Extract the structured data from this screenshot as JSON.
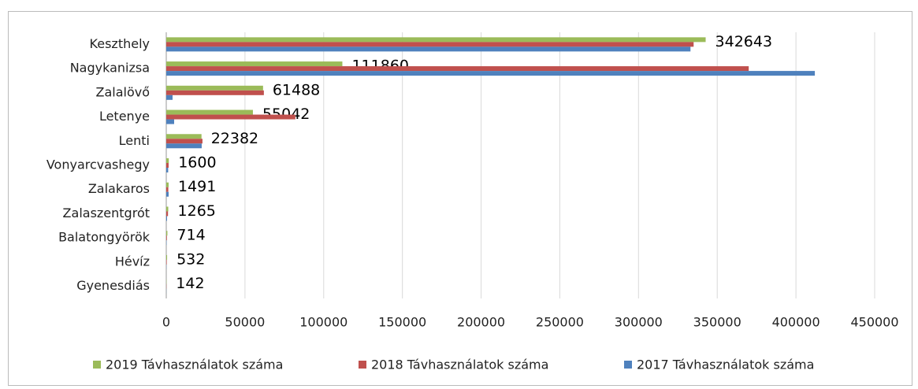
{
  "chart_data": {
    "type": "hbar",
    "categories": [
      "Keszthely",
      "Nagykanizsa",
      "Zalalövő",
      "Letenye",
      "Lenti",
      "Vonyarcvashegy",
      "Zalakaros",
      "Zalaszentgrót",
      "Balatongyörök",
      "Hévíz",
      "Gyenesdiás"
    ],
    "series": [
      {
        "name": "2019 Távhasználatok száma",
        "color": "#9bbb59",
        "values": [
          342643,
          111860,
          61488,
          55042,
          22382,
          1600,
          1491,
          1265,
          714,
          532,
          142
        ],
        "data_labels": true
      },
      {
        "name": "2018 Távhasználatok száma",
        "color": "#c0504d",
        "values": [
          335000,
          370000,
          62000,
          82000,
          23000,
          1500,
          1300,
          1100,
          400,
          300,
          100
        ]
      },
      {
        "name": "2017 Távhasználatok száma",
        "color": "#4f81bd",
        "values": [
          333000,
          412000,
          4000,
          5000,
          22500,
          1200,
          1500,
          500,
          200,
          100,
          50
        ]
      }
    ],
    "xlim": [
      0,
      450000
    ],
    "xticks": [
      0,
      50000,
      100000,
      150000,
      200000,
      250000,
      300000,
      350000,
      400000,
      450000
    ],
    "grid": true,
    "legend": "bottom"
  }
}
